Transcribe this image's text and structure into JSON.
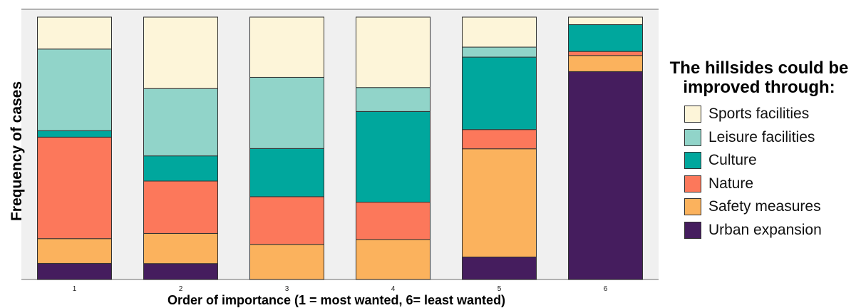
{
  "chart_data": {
    "type": "bar",
    "stacked": true,
    "normalized": true,
    "categories": [
      "1",
      "2",
      "3",
      "4",
      "5",
      "6"
    ],
    "xlabel": "Order of importance (1 = most wanted, 6= least wanted)",
    "ylabel": "Frequency of cases",
    "legend_title": "The hillsides could be improved through:",
    "legend_position": "right",
    "grid": false,
    "series": [
      {
        "name": "Urban expansion",
        "color": "#451d5e",
        "values": [
          6.5,
          6.5,
          0,
          0,
          9,
          77.5
        ]
      },
      {
        "name": "Safety measures",
        "color": "#fbb25d",
        "values": [
          10,
          12.3,
          14,
          15,
          43.3,
          6
        ]
      },
      {
        "name": "Nature",
        "color": "#fc785b",
        "values": [
          41,
          21.4,
          19,
          14,
          7.7,
          1.5
        ]
      },
      {
        "name": "Culture",
        "color": "#00a79d",
        "values": [
          2.6,
          10.3,
          19.2,
          34,
          29,
          10
        ]
      },
      {
        "name": "Leisure facilities",
        "color": "#91d4c9",
        "values": [
          33,
          27.5,
          28.4,
          9,
          4,
          0
        ]
      },
      {
        "name": "Sports facilities",
        "color": "#fdf5d9",
        "values": [
          12.9,
          29.2,
          24,
          26.4,
          12,
          2.8
        ]
      }
    ]
  }
}
